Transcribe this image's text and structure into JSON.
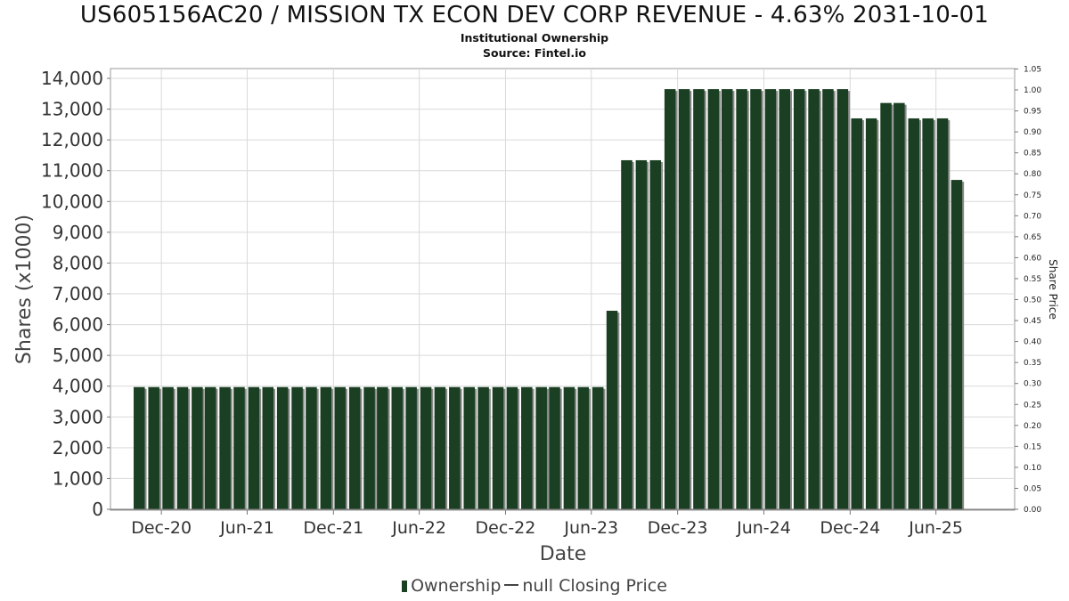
{
  "title": "US605156AC20 / MISSION TX ECON DEV CORP REVENUE - 4.63% 2031-10-01",
  "subtitle": "Institutional Ownership",
  "source": "Source: Fintel.io",
  "colors": {
    "bar": "#1a3f22",
    "bar_shadow": "#8a8a8a",
    "grid": "#d9d9d9"
  },
  "legend": {
    "ownership": "Ownership",
    "price": "null Closing Price"
  },
  "chart_data": {
    "type": "bar",
    "xlabel": "Date",
    "ylabel": "Shares (x1000)",
    "y2label": "Share Price",
    "ylim": [
      0,
      14300
    ],
    "y2lim": [
      0,
      1.05
    ],
    "yticks": [
      "0",
      "1,000",
      "2,000",
      "3,000",
      "4,000",
      "5,000",
      "6,000",
      "7,000",
      "8,000",
      "9,000",
      "10,000",
      "11,000",
      "12,000",
      "13,000",
      "14,000"
    ],
    "y2ticks": [
      "0.00",
      "0.05",
      "0.10",
      "0.15",
      "0.20",
      "0.25",
      "0.30",
      "0.35",
      "0.40",
      "0.45",
      "0.50",
      "0.55",
      "0.60",
      "0.65",
      "0.70",
      "0.75",
      "0.80",
      "0.85",
      "0.90",
      "0.95",
      "1.00",
      "1.05"
    ],
    "xticks": [
      "Dec-20",
      "Jun-21",
      "Dec-21",
      "Jun-22",
      "Dec-22",
      "Jun-23",
      "Dec-23",
      "Jun-24",
      "Dec-24",
      "Jun-25"
    ],
    "xtick_dates": [
      "2020-12-01",
      "2021-06-01",
      "2021-12-01",
      "2022-06-01",
      "2022-12-01",
      "2023-06-01",
      "2023-12-01",
      "2024-06-01",
      "2024-12-01",
      "2025-06-01"
    ],
    "x_range": [
      "2020-08-15",
      "2025-11-15"
    ],
    "grid": true,
    "legend_position": "bottom-center",
    "series": [
      {
        "name": "Ownership",
        "points": [
          {
            "x": "2020-10-15",
            "y": 3970
          },
          {
            "x": "2020-11-15",
            "y": 3970
          },
          {
            "x": "2020-12-15",
            "y": 3970
          },
          {
            "x": "2021-01-15",
            "y": 3970
          },
          {
            "x": "2021-02-15",
            "y": 3970
          },
          {
            "x": "2021-03-15",
            "y": 3970
          },
          {
            "x": "2021-04-15",
            "y": 3970
          },
          {
            "x": "2021-05-15",
            "y": 3970
          },
          {
            "x": "2021-06-15",
            "y": 3970
          },
          {
            "x": "2021-07-15",
            "y": 3970
          },
          {
            "x": "2021-08-15",
            "y": 3970
          },
          {
            "x": "2021-09-15",
            "y": 3970
          },
          {
            "x": "2021-10-15",
            "y": 3970
          },
          {
            "x": "2021-11-15",
            "y": 3970
          },
          {
            "x": "2021-12-15",
            "y": 3970
          },
          {
            "x": "2022-01-15",
            "y": 3970
          },
          {
            "x": "2022-02-15",
            "y": 3970
          },
          {
            "x": "2022-03-15",
            "y": 3970
          },
          {
            "x": "2022-04-15",
            "y": 3970
          },
          {
            "x": "2022-05-15",
            "y": 3970
          },
          {
            "x": "2022-06-15",
            "y": 3970
          },
          {
            "x": "2022-07-15",
            "y": 3970
          },
          {
            "x": "2022-08-15",
            "y": 3970
          },
          {
            "x": "2022-09-15",
            "y": 3970
          },
          {
            "x": "2022-10-15",
            "y": 3970
          },
          {
            "x": "2022-11-15",
            "y": 3970
          },
          {
            "x": "2022-12-15",
            "y": 3970
          },
          {
            "x": "2023-01-15",
            "y": 3970
          },
          {
            "x": "2023-02-15",
            "y": 3970
          },
          {
            "x": "2023-03-15",
            "y": 3970
          },
          {
            "x": "2023-04-15",
            "y": 3970
          },
          {
            "x": "2023-05-15",
            "y": 3970
          },
          {
            "x": "2023-06-15",
            "y": 3970
          },
          {
            "x": "2023-07-15",
            "y": 6450
          },
          {
            "x": "2023-08-15",
            "y": 11340
          },
          {
            "x": "2023-09-15",
            "y": 11340
          },
          {
            "x": "2023-10-15",
            "y": 11340
          },
          {
            "x": "2023-11-15",
            "y": 13650
          },
          {
            "x": "2023-12-15",
            "y": 13650
          },
          {
            "x": "2024-01-15",
            "y": 13650
          },
          {
            "x": "2024-02-15",
            "y": 13650
          },
          {
            "x": "2024-03-15",
            "y": 13650
          },
          {
            "x": "2024-04-15",
            "y": 13650
          },
          {
            "x": "2024-05-15",
            "y": 13650
          },
          {
            "x": "2024-06-15",
            "y": 13650
          },
          {
            "x": "2024-07-15",
            "y": 13650
          },
          {
            "x": "2024-08-15",
            "y": 13650
          },
          {
            "x": "2024-09-15",
            "y": 13650
          },
          {
            "x": "2024-10-15",
            "y": 13650
          },
          {
            "x": "2024-11-15",
            "y": 13650
          },
          {
            "x": "2024-12-15",
            "y": 12700
          },
          {
            "x": "2025-01-15",
            "y": 12700
          },
          {
            "x": "2025-02-15",
            "y": 13200
          },
          {
            "x": "2025-03-15",
            "y": 13200
          },
          {
            "x": "2025-04-15",
            "y": 12700
          },
          {
            "x": "2025-05-15",
            "y": 12700
          },
          {
            "x": "2025-06-15",
            "y": 12700
          },
          {
            "x": "2025-07-15",
            "y": 10700
          }
        ]
      }
    ]
  }
}
